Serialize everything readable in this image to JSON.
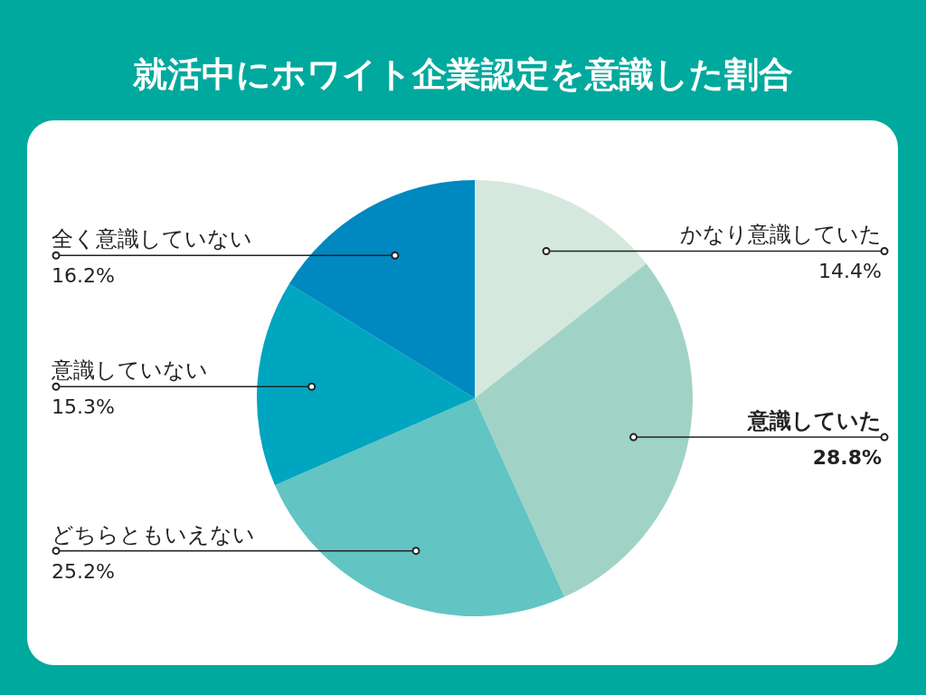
{
  "chart_data": {
    "type": "pie",
    "title": "就活中にホワイト企業認定を意識した割合",
    "categories": [
      "かなり意識していた",
      "意識していた",
      "どちらともいえない",
      "意識していない",
      "全く意識していない"
    ],
    "values": [
      14.4,
      28.8,
      25.2,
      15.3,
      16.2
    ],
    "value_labels": [
      "14.4%",
      "28.8%",
      "25.2%",
      "15.3%",
      "16.2%"
    ],
    "colors": [
      "#d5e8de",
      "#a0d3c6",
      "#63c4c4",
      "#00a5c0",
      "#0088c0"
    ]
  }
}
